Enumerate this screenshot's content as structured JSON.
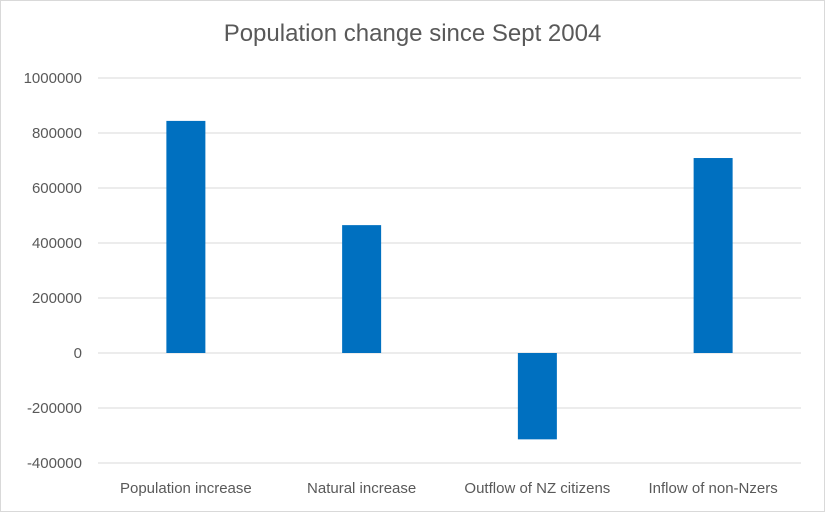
{
  "chart_data": {
    "type": "bar",
    "title": "Population change since Sept 2004",
    "categories": [
      "Population increase",
      "Natural increase",
      "Outflow of NZ citizens",
      "Inflow of non-Nzers"
    ],
    "values": [
      844000,
      465000,
      -314000,
      709000
    ],
    "xlabel": "",
    "ylabel": "",
    "ylim": [
      -400000,
      1000000
    ],
    "yticks": [
      "1000000",
      "800000",
      "600000",
      "400000",
      "200000",
      "0",
      "-200000",
      "-400000"
    ],
    "grid": true,
    "legend": "none",
    "bar_color": "#0070C0",
    "grid_color": "#D9D9D9"
  }
}
